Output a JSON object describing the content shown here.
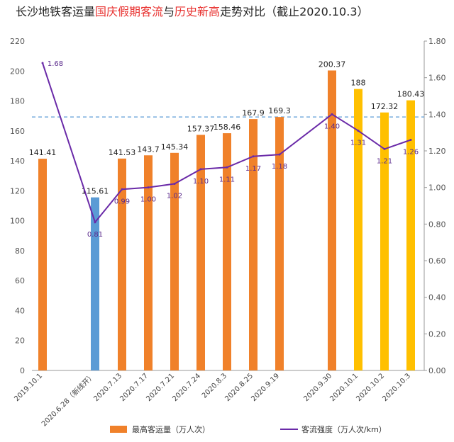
{
  "title_parts": [
    {
      "text": "长沙地铁客运量",
      "color": "#222222"
    },
    {
      "text": "国庆假期客流",
      "color": "#e8312f"
    },
    {
      "text": "与",
      "color": "#222222"
    },
    {
      "text": "历史新高",
      "color": "#e8312f"
    },
    {
      "text": "走势对比（截止2020.10.3）",
      "color": "#222222"
    }
  ],
  "legend": {
    "bars_label": "最高客运量（万人次）",
    "line_label": "客流强度（万人次/km）"
  },
  "colors": {
    "orange": "#f0812a",
    "blue": "#5b9bd5",
    "gold": "#ffc000",
    "line": "#6a2aa8",
    "ref_line": "#5b9bd5"
  },
  "chart_data": {
    "type": "bar",
    "categories": [
      "2019.10.1",
      "2020.6.28（新线开）",
      "2020.7.13",
      "2020.7.17",
      "2020.7.21",
      "2020.7.24",
      "2020.8.3",
      "2020.8.25",
      "2020.9.19",
      "2020.9.30",
      "2020.10.1",
      "2020.10.2",
      "2020.10.3"
    ],
    "series": [
      {
        "name": "最高客运量（万人次）",
        "type": "bar",
        "axis": "left",
        "values": [
          141.41,
          115.61,
          141.53,
          143.7,
          145.34,
          157.37,
          158.46,
          167.9,
          169.3,
          200.37,
          188,
          172.32,
          180.43
        ],
        "value_labels": [
          "141.41",
          "115.61",
          "141.53",
          "143.7",
          "145.34",
          "157.37",
          "158.46",
          "167.9",
          "169.3",
          "200.37",
          "188",
          "172.32",
          "180.43"
        ],
        "bar_colors": [
          "orange",
          "blue",
          "orange",
          "orange",
          "orange",
          "orange",
          "orange",
          "orange",
          "orange",
          "orange",
          "gold",
          "gold",
          "gold"
        ]
      },
      {
        "name": "客流强度（万人次/km）",
        "type": "line",
        "axis": "right",
        "values": [
          1.68,
          0.81,
          0.99,
          1.0,
          1.02,
          1.1,
          1.11,
          1.17,
          1.18,
          1.4,
          1.31,
          1.21,
          1.26
        ],
        "value_labels": [
          "1.68",
          "0.81",
          "0.99",
          "1.00",
          "1.02",
          "1.10",
          "1.11",
          "1.17",
          "1.18",
          "1.40",
          "1.31",
          "1.21",
          "1.26"
        ]
      }
    ],
    "y_left": {
      "min": 0,
      "max": 220,
      "ticks": [
        "0",
        "20",
        "40",
        "60",
        "80",
        "100",
        "120",
        "140",
        "160",
        "180",
        "200",
        "220"
      ]
    },
    "y_right": {
      "min": 0,
      "max": 1.8,
      "ticks": [
        "0.00",
        "0.20",
        "0.40",
        "0.60",
        "0.80",
        "1.00",
        "1.20",
        "1.40",
        "1.60",
        "1.80"
      ]
    },
    "reference_line": {
      "axis": "left",
      "value": 169.3,
      "style": "dashed"
    },
    "grid": false,
    "legend_position": "bottom"
  }
}
